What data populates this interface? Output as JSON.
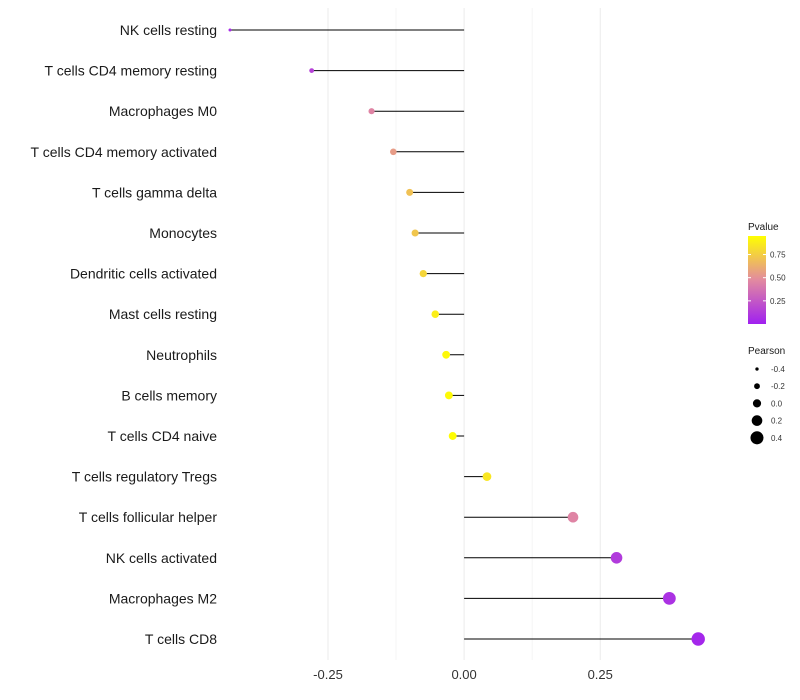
{
  "chart_data": {
    "type": "lollipop",
    "title": "",
    "xlabel": "",
    "ylabel": "",
    "xlim": [
      -0.43,
      0.47
    ],
    "x_ticks": [
      -0.25,
      0.0,
      0.25
    ],
    "x_tick_labels": [
      "-0.25",
      "0.00",
      "0.25"
    ],
    "grid": true,
    "categories": [
      "NK cells resting",
      "T cells CD4 memory resting",
      "Macrophages M0",
      "T cells CD4 memory activated",
      "T cells gamma delta",
      "Monocytes",
      "Dendritic cells activated",
      "Mast cells resting",
      "Neutrophils",
      "B cells memory",
      "T cells CD4 naive",
      "T cells regulatory  Tregs",
      "T cells follicular helper",
      "NK cells activated",
      "Macrophages M2",
      "T cells CD8"
    ],
    "pearson": [
      -0.43,
      -0.28,
      -0.17,
      -0.13,
      -0.1,
      -0.09,
      -0.075,
      -0.053,
      -0.033,
      -0.028,
      -0.021,
      0.042,
      0.2,
      0.28,
      0.377,
      0.43
    ],
    "pvalue": [
      0.05,
      0.15,
      0.45,
      0.55,
      0.7,
      0.72,
      0.78,
      0.88,
      0.92,
      0.93,
      0.94,
      0.85,
      0.45,
      0.12,
      0.08,
      0.03
    ],
    "legend": {
      "color_title": "Pvalue",
      "color_ticks": [
        0.25,
        0.5,
        0.75
      ],
      "color_tick_labels": [
        "0.25",
        "0.50",
        "0.75"
      ],
      "color_range": [
        0.0,
        0.95
      ],
      "color_low": "#a020f0",
      "color_mid": "#e28aa0",
      "color_high": "#ffff00",
      "size_title": "Pearson",
      "size_values": [
        -0.4,
        -0.2,
        0.0,
        0.2,
        0.4
      ],
      "size_labels": [
        "-0.4",
        "-0.2",
        "0.0",
        "0.2",
        "0.4"
      ],
      "position": "right"
    }
  }
}
